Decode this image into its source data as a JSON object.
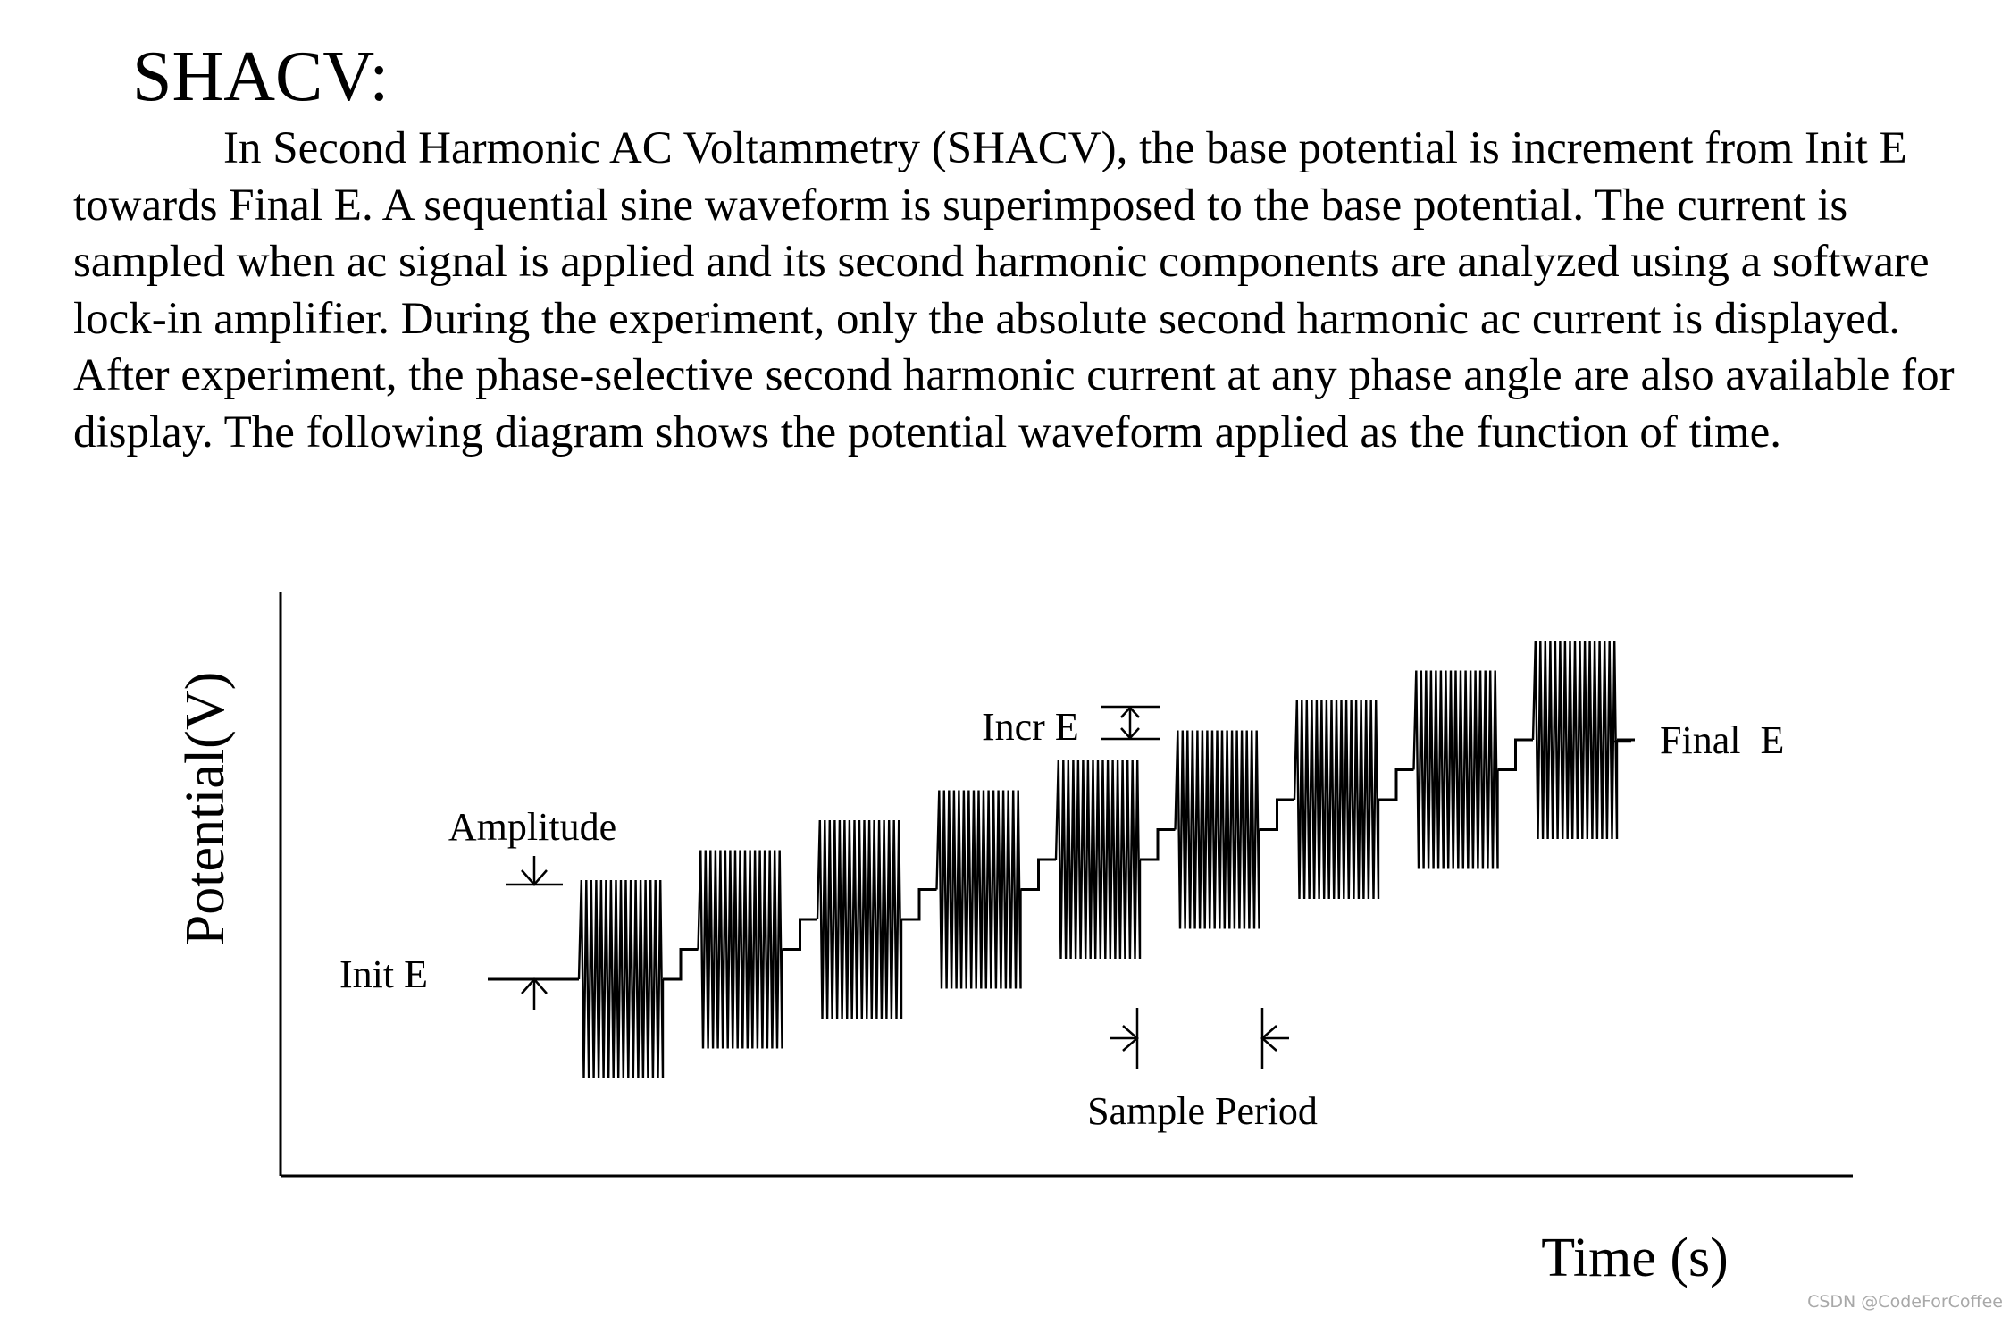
{
  "document": {
    "heading": "SHACV:",
    "paragraph": "In Second Harmonic AC Voltammetry (SHACV), the base potential is increment from Init E towards Final E. A sequential sine waveform is superimposed to the base potential. The current is sampled when ac signal is applied and its second harmonic components are analyzed using a software lock-in amplifier. During the experiment, only the absolute second harmonic ac current is displayed. After experiment, the phase-selective second harmonic current at any phase angle are also available for display. The following diagram shows the potential waveform applied as the function of time."
  },
  "chart_data": {
    "type": "line",
    "title": "",
    "xlabel": "Time (s)",
    "ylabel": "Potential(V)",
    "grid": false,
    "legend": "none",
    "steps": 9,
    "oscillations_per_step": 17,
    "annotations": {
      "init_e": "Init E",
      "final_e": "Final  E",
      "amplitude": "Amplitude",
      "incr_e": "Incr E",
      "sample_period": "Sample Period"
    }
  },
  "watermark": "CSDN @CodeForCoffee"
}
